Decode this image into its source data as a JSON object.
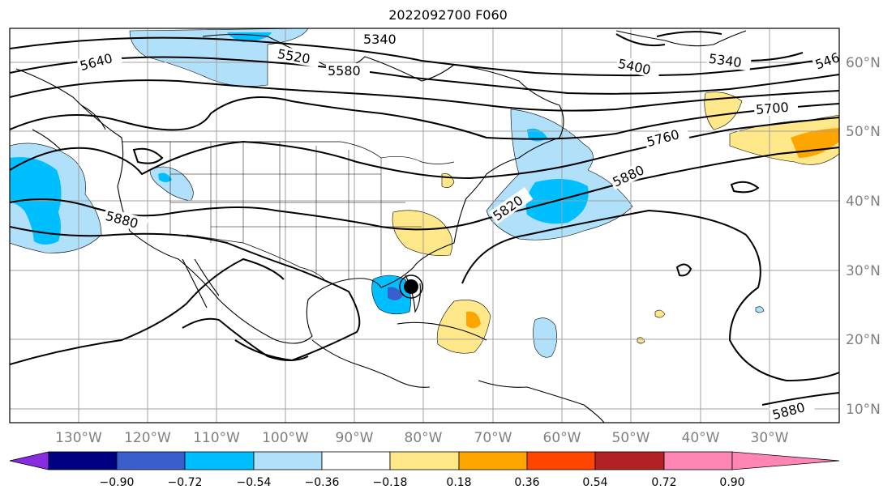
{
  "title": "2022092700 F060",
  "longitude_labels": [
    "130°W",
    "120°W",
    "110°W",
    "100°W",
    "90°W",
    "80°W",
    "70°W",
    "60°W",
    "50°W",
    "40°W",
    "30°W"
  ],
  "latitude_labels": [
    "60°N",
    "50°N",
    "40°N",
    "30°N",
    "20°N",
    "10°N"
  ],
  "contour_labels": [
    "5340",
    "5520",
    "5580",
    "5640",
    "5400",
    "5340",
    "546",
    "5700",
    "5760",
    "5880",
    "5820",
    "5880",
    "5880"
  ],
  "colorbar": {
    "ticks": [
      "−0.90",
      "−0.72",
      "−0.54",
      "−0.36",
      "−0.18",
      "0.18",
      "0.36",
      "0.54",
      "0.72",
      "0.90"
    ],
    "colors": [
      "#8a2be2",
      "#000080",
      "#3a5fcd",
      "#00bfff",
      "#b0e0fa",
      "#ffffff",
      "#ffe88a",
      "#ffa500",
      "#ff4500",
      "#b22222",
      "#ff85b5"
    ]
  },
  "colors": {
    "land_outline": "#000000",
    "grid": "#a0a0a0",
    "label_gray": "#808080"
  }
}
